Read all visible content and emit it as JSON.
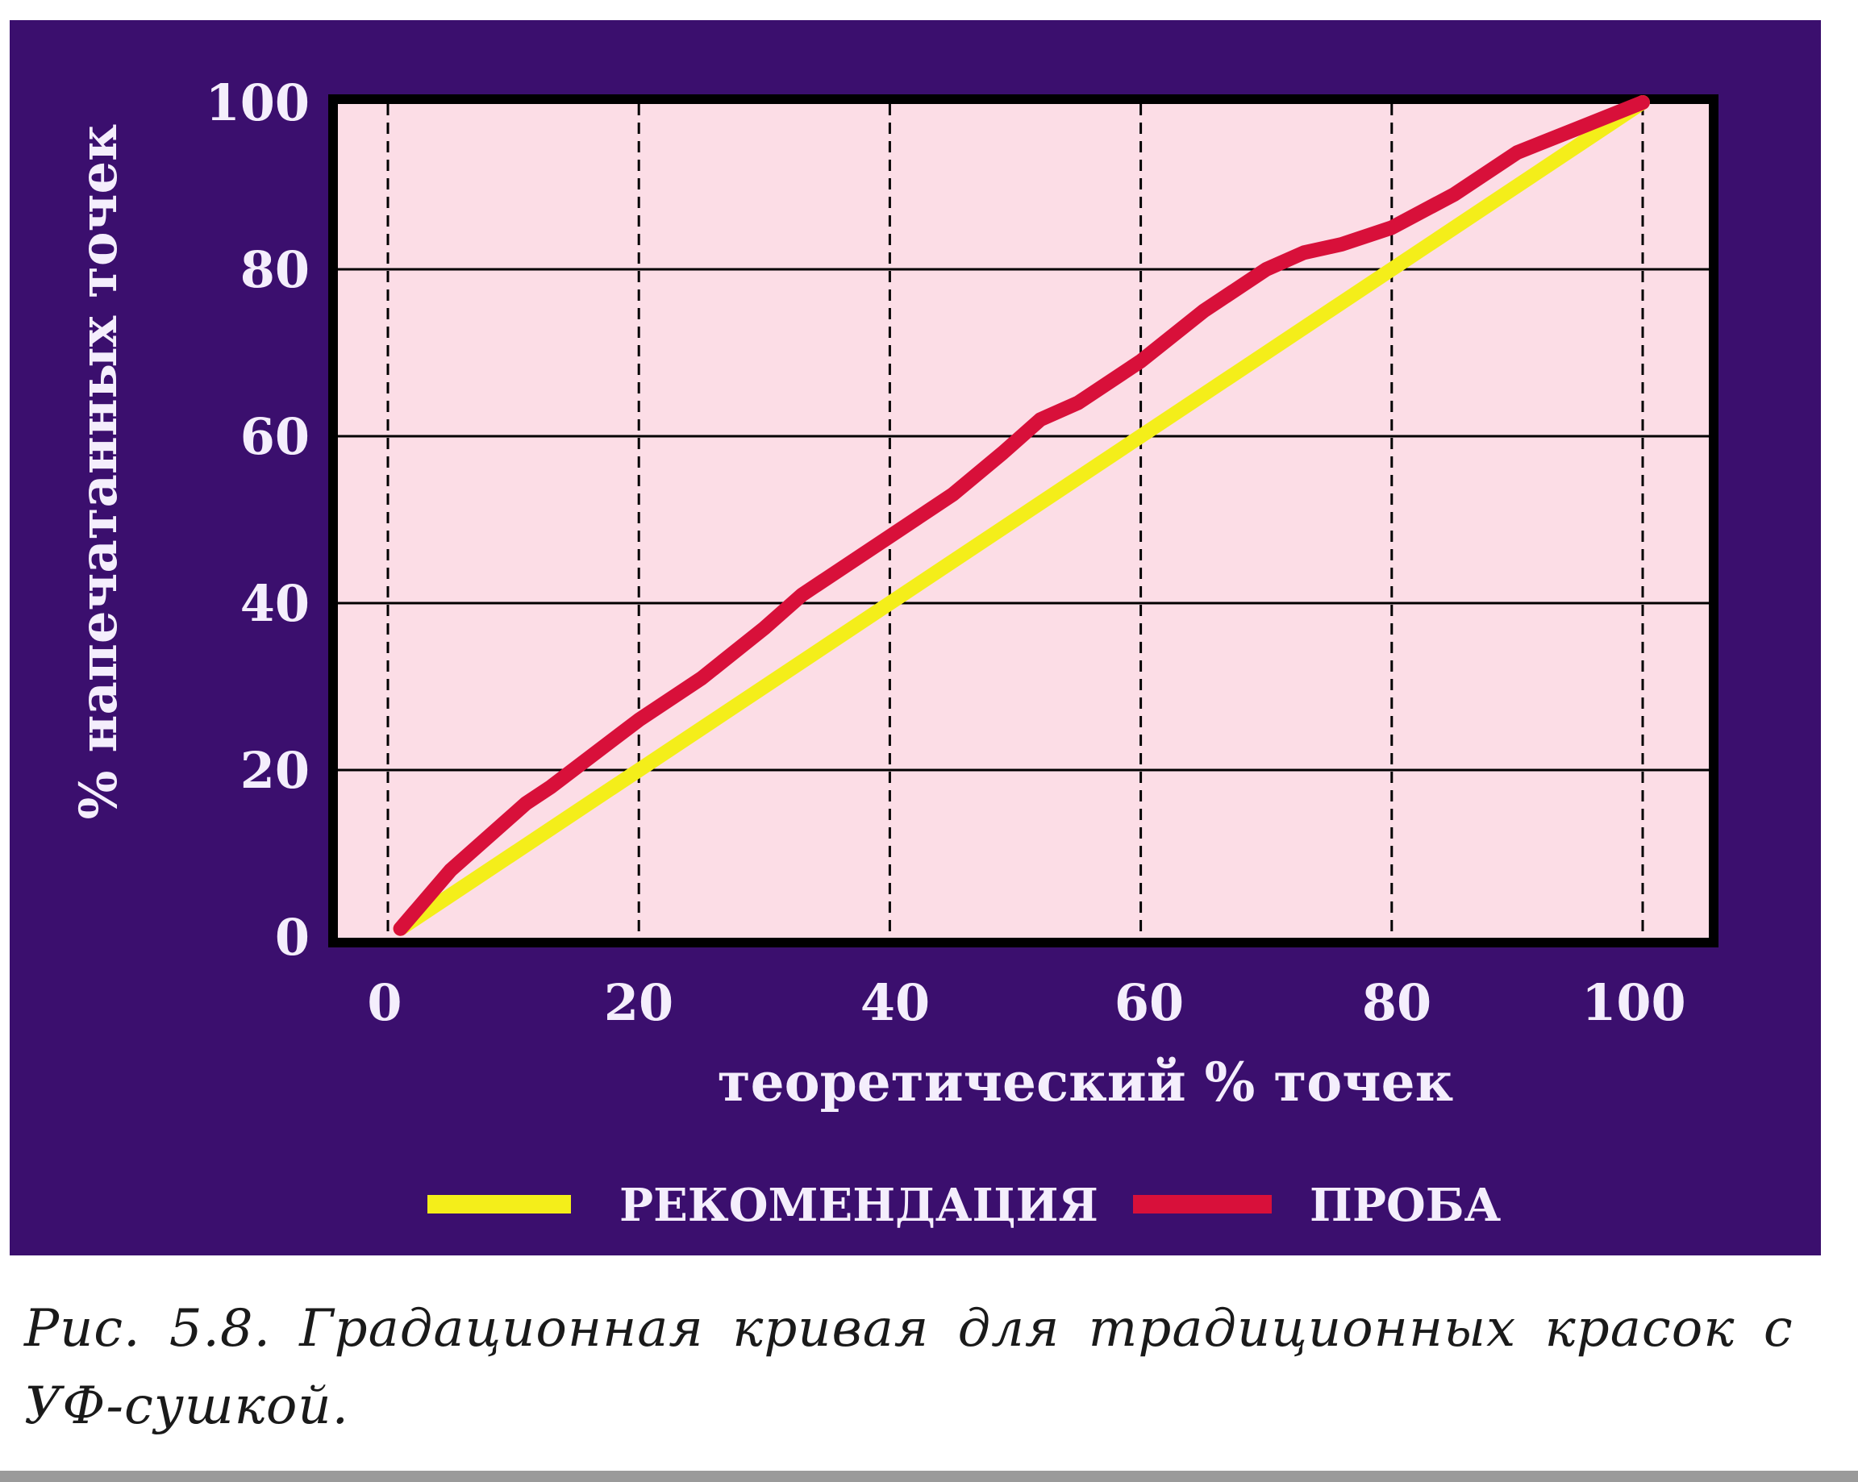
{
  "chart_data": {
    "type": "line",
    "xlabel": "теоретический % точек",
    "ylabel": "% напечатанных точек",
    "xlim": [
      0,
      100
    ],
    "ylim": [
      0,
      100
    ],
    "xticks": [
      "0",
      "20",
      "40",
      "60",
      "80",
      "100"
    ],
    "yticks": [
      "0",
      "20",
      "40",
      "60",
      "80",
      "100"
    ],
    "grid": true,
    "legend_position": "bottom",
    "series": [
      {
        "name": "РЕКОМЕНДАЦИЯ",
        "color": "#f4ee1a",
        "x": [
          1,
          100
        ],
        "y": [
          1,
          100
        ]
      },
      {
        "name": "ПРОБА",
        "color": "#d8103a",
        "x": [
          1,
          5,
          11,
          13,
          20,
          25,
          30,
          33,
          40,
          45,
          49,
          52,
          55,
          60,
          65,
          70,
          73,
          76,
          80,
          85,
          90,
          95,
          100
        ],
        "y": [
          1,
          8,
          16,
          18,
          26,
          31,
          37,
          41,
          48,
          53,
          58,
          62,
          64,
          69,
          75,
          80,
          82,
          83,
          85,
          89,
          94,
          97,
          100
        ]
      }
    ]
  },
  "caption": "Рис. 5.8. Градационная кривая для традиционных красок с УФ-сушкой."
}
